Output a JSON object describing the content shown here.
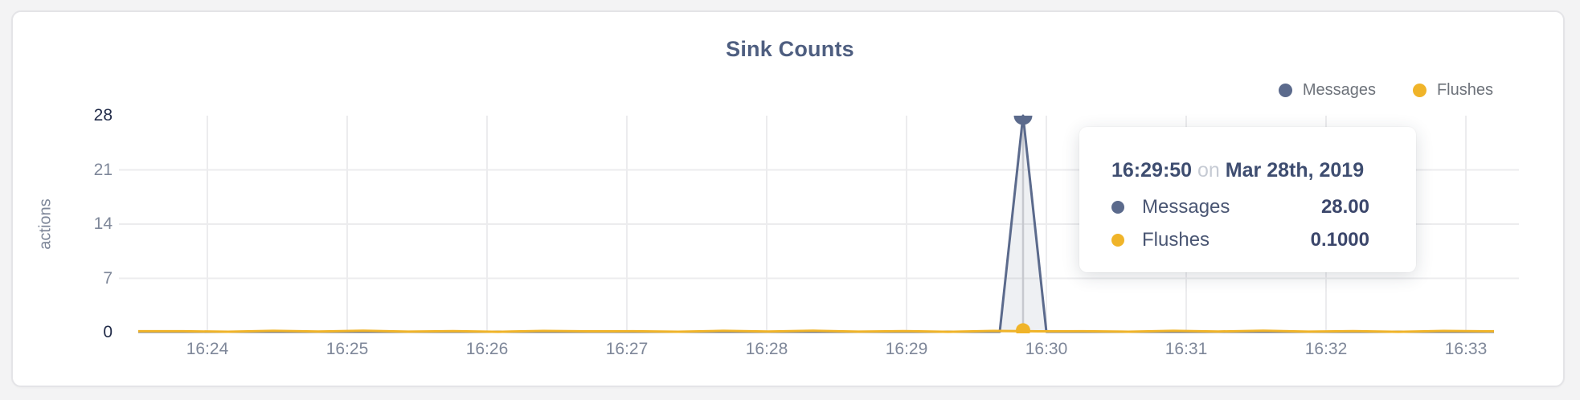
{
  "chart": {
    "title": "Sink Counts",
    "y_axis": {
      "label": "actions"
    },
    "legend": [
      {
        "name": "Messages",
        "color": "#5b6a8c"
      },
      {
        "name": "Flushes",
        "color": "#f0b429"
      }
    ]
  },
  "chart_data": {
    "type": "area",
    "title": "Sink Counts",
    "xlabel": "",
    "ylabel": "actions",
    "ylim": [
      0,
      28
    ],
    "y_ticks": [
      28,
      21,
      14,
      7,
      0
    ],
    "x_ticks": [
      "16:24",
      "16:25",
      "16:26",
      "16:27",
      "16:28",
      "16:29",
      "16:30",
      "16:31",
      "16:32",
      "16:33"
    ],
    "x_range": [
      "16:23:30",
      "16:33:20"
    ],
    "point_interval_seconds": 10,
    "date": "Mar 28th, 2019",
    "grid": true,
    "legend_position": "top-right",
    "hovered_x": "16:29:50",
    "series": [
      {
        "name": "Messages",
        "color": "#5b6a8c",
        "baseline": 0,
        "spikes": [
          {
            "x": "16:29:50",
            "y": 28
          }
        ]
      },
      {
        "name": "Flushes",
        "color": "#f0b429",
        "baseline": 0.1,
        "spikes": []
      }
    ]
  },
  "tooltip": {
    "time": "16:29:50",
    "conjunction": "on",
    "date": "Mar 28th, 2019",
    "rows": [
      {
        "name": "Messages",
        "color": "#5b6a8c",
        "value": "28.00"
      },
      {
        "name": "Flushes",
        "color": "#f0b429",
        "value": "0.1000"
      }
    ]
  },
  "colors": {
    "background": "#f3f3f4",
    "card_border": "#e4e4e7",
    "title": "#4e5e80",
    "grid": "#ececee",
    "hover_line": "#c7c9cf",
    "area_fill": "rgba(90,104,140,0.10)",
    "axis_label": "#7e8799",
    "axis_label_emphasis": "#222c49",
    "legend_label": "#6d727a",
    "messages": "#5b6a8c",
    "flushes": "#f0b429"
  }
}
